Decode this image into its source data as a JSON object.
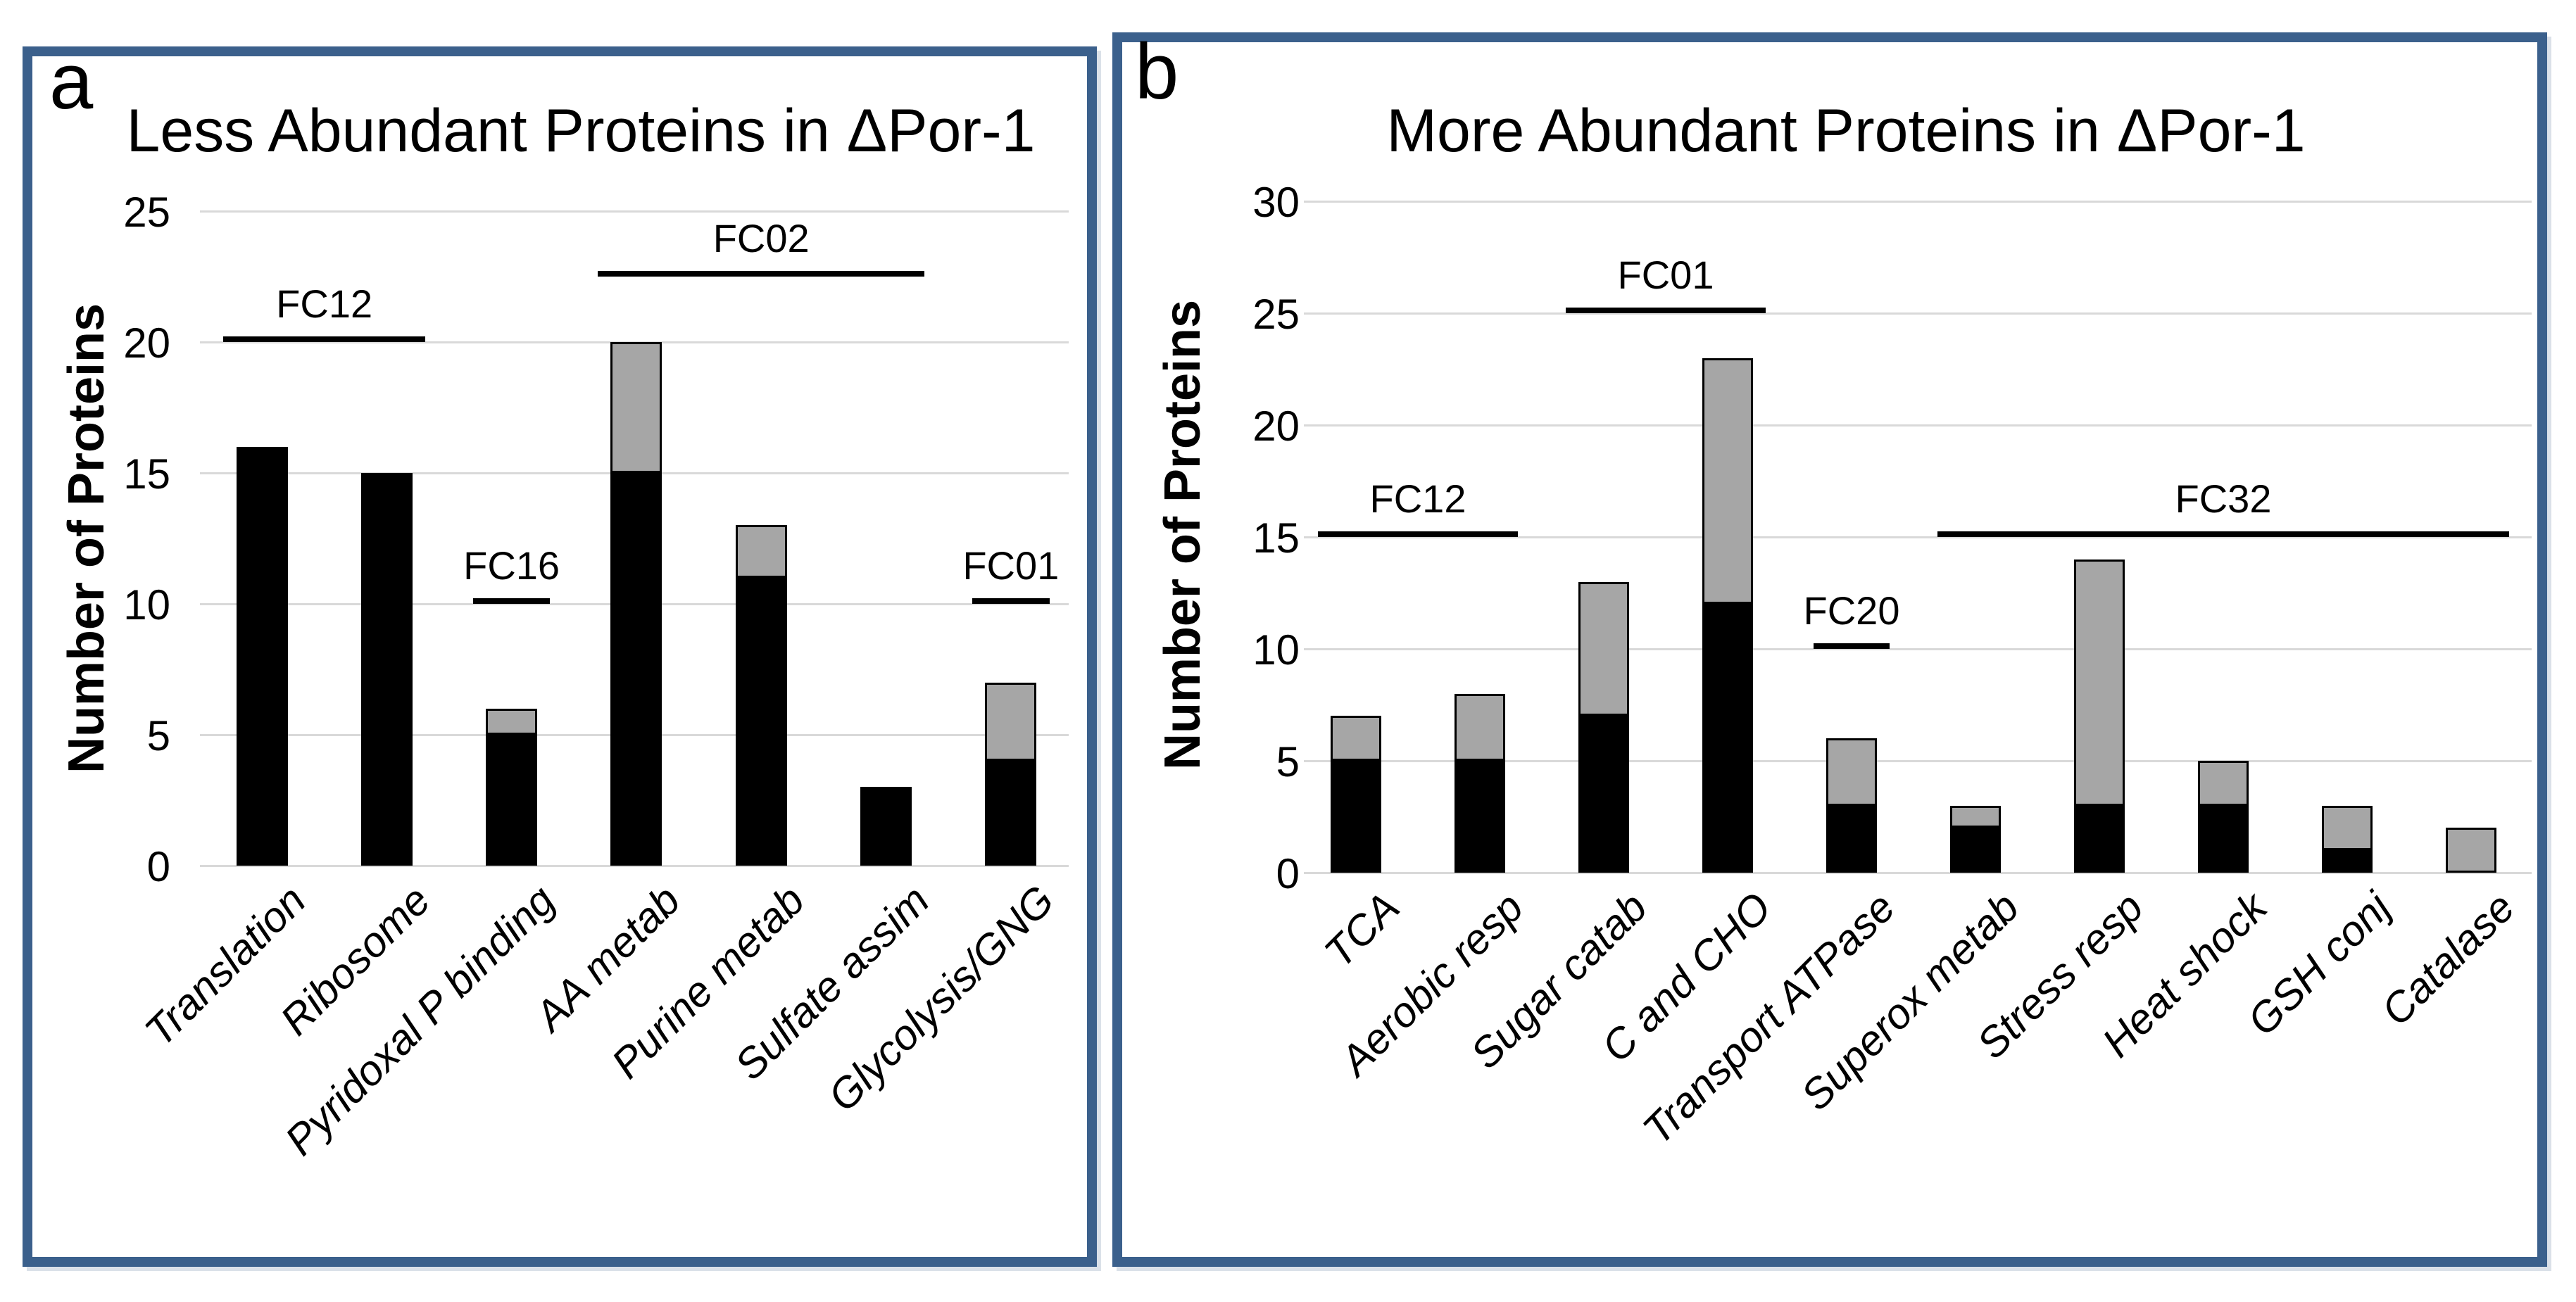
{
  "figure": {
    "description": "Two-panel stacked bar figure comparing protein abundance categories",
    "background": "#ffffff"
  },
  "colors": {
    "panel_border": "#3b608c",
    "bar_black": "#000000",
    "bar_gray": "#a6a6a6",
    "gridline": "#d9d9d9",
    "text": "#000000"
  },
  "chart_data": [
    {
      "id": "a",
      "panel_label": "a",
      "type": "bar",
      "stacked": true,
      "grid": true,
      "legend": "none",
      "title": "Less Abundant Proteins in ΔPor-1",
      "xlabel": "",
      "ylabel": "Number of Proteins",
      "ylim": [
        0,
        25
      ],
      "yticks": [
        0,
        5,
        10,
        15,
        20,
        25
      ],
      "categories": [
        "Translation",
        "Ribosome",
        "Pyridoxal P binding",
        "AA metab",
        "Purine metab",
        "Sulfate assim",
        "Glycolysis/GNG"
      ],
      "series": [
        {
          "name": "black segment",
          "color": "#000000",
          "values": [
            16,
            15,
            5,
            15,
            11,
            3,
            4
          ]
        },
        {
          "name": "gray segment",
          "color": "#a6a6a6",
          "values": [
            0,
            0,
            1,
            5,
            2,
            0,
            3
          ]
        }
      ],
      "totals": [
        16,
        15,
        6,
        20,
        13,
        3,
        7
      ],
      "annotations": [
        {
          "label": "FC12",
          "y": 20,
          "from": 0,
          "to": 1
        },
        {
          "label": "FC16",
          "y": 10,
          "from": 2,
          "to": 2
        },
        {
          "label": "FC02",
          "y": 22.5,
          "from": 3,
          "to": 5
        },
        {
          "label": "FC01",
          "y": 10,
          "from": 6,
          "to": 6
        }
      ]
    },
    {
      "id": "b",
      "panel_label": "b",
      "type": "bar",
      "stacked": true,
      "grid": true,
      "legend": "none",
      "title": "More Abundant Proteins in ΔPor-1",
      "xlabel": "",
      "ylabel": "Number of Proteins",
      "ylim": [
        0,
        30
      ],
      "yticks": [
        0,
        5,
        10,
        15,
        20,
        25,
        30
      ],
      "categories": [
        "TCA",
        "Aerobic resp",
        "Sugar catab",
        "C and CHO",
        "Transport ATPase",
        "Superox metab",
        "Stress resp",
        "Heat shock",
        "GSH conj",
        "Catalase"
      ],
      "series": [
        {
          "name": "black segment",
          "color": "#000000",
          "values": [
            5,
            5,
            7,
            12,
            3,
            2,
            3,
            3,
            1,
            0
          ]
        },
        {
          "name": "gray segment",
          "color": "#a6a6a6",
          "values": [
            2,
            3,
            6,
            11,
            3,
            1,
            11,
            2,
            2,
            2
          ]
        }
      ],
      "totals": [
        7,
        8,
        13,
        23,
        6,
        3,
        14,
        5,
        3,
        2
      ],
      "annotations": [
        {
          "label": "FC12",
          "y": 15,
          "from": 0,
          "to": 1
        },
        {
          "label": "FC01",
          "y": 25,
          "from": 2,
          "to": 3
        },
        {
          "label": "FC20",
          "y": 10,
          "from": 4,
          "to": 4
        },
        {
          "label": "FC32",
          "y": 15,
          "from": 5,
          "to": 9
        }
      ]
    }
  ]
}
